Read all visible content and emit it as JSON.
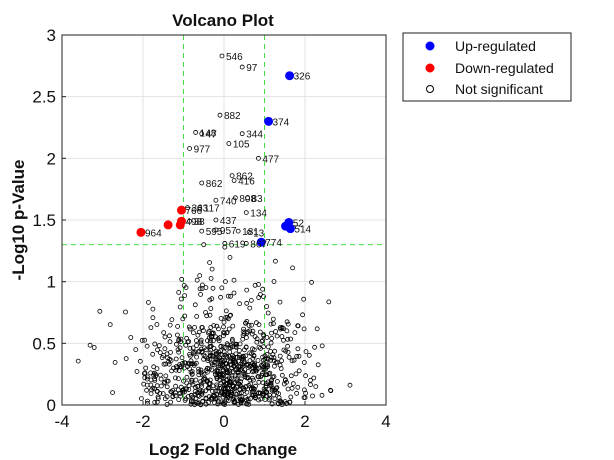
{
  "chart_data": {
    "type": "scatter",
    "title": "Volcano Plot",
    "xlabel": "Log2 Fold Change",
    "ylabel": "-Log10 p-Value",
    "xlim": [
      -4,
      4
    ],
    "ylim": [
      0,
      3
    ],
    "xticks": [
      "-4",
      "-2",
      "0",
      "2",
      "4"
    ],
    "yticks": [
      "0",
      "0.5",
      "1",
      "1.5",
      "2",
      "2.5",
      "3"
    ],
    "grid": true,
    "legend_position": "outside-top-right",
    "thresholds": {
      "log2fc": [
        -1,
        1
      ],
      "neg_log10_p": 1.3
    },
    "colors": {
      "up": "#0000ff",
      "down": "#ff0000",
      "ns": "#000000",
      "threshold": "#44dd44"
    },
    "series": [
      {
        "name": "Up-regulated",
        "points": [
          {
            "x": 1.62,
            "y": 2.67,
            "label": "326"
          },
          {
            "x": 1.1,
            "y": 2.3,
            "label": "374"
          },
          {
            "x": 1.6,
            "y": 1.48,
            "label": "52"
          },
          {
            "x": 1.52,
            "y": 1.45,
            "label": ""
          },
          {
            "x": 1.64,
            "y": 1.43,
            "label": "514"
          },
          {
            "x": 0.92,
            "y": 1.32,
            "label": "774"
          }
        ]
      },
      {
        "name": "Down-regulated",
        "points": [
          {
            "x": -2.05,
            "y": 1.4,
            "label": "964"
          },
          {
            "x": -1.05,
            "y": 1.58,
            "label": "766"
          },
          {
            "x": -1.05,
            "y": 1.49,
            "label": "498"
          },
          {
            "x": -1.08,
            "y": 1.46,
            "label": ""
          },
          {
            "x": -1.38,
            "y": 1.46,
            "label": ""
          }
        ]
      },
      {
        "name": "Not significant",
        "points": [
          {
            "x": -0.05,
            "y": 2.83,
            "label": "546"
          },
          {
            "x": 0.45,
            "y": 2.74,
            "label": "97"
          },
          {
            "x": -0.1,
            "y": 2.35,
            "label": "882"
          },
          {
            "x": -0.7,
            "y": 2.21,
            "label": "148"
          },
          {
            "x": -0.55,
            "y": 2.2,
            "label": "47"
          },
          {
            "x": 0.45,
            "y": 2.2,
            "label": "344"
          },
          {
            "x": 0.12,
            "y": 2.12,
            "label": "105"
          },
          {
            "x": -0.85,
            "y": 2.08,
            "label": "977"
          },
          {
            "x": 0.85,
            "y": 2.0,
            "label": "477"
          },
          {
            "x": 0.2,
            "y": 1.86,
            "label": "862"
          },
          {
            "x": 0.25,
            "y": 1.82,
            "label": "416"
          },
          {
            "x": -0.55,
            "y": 1.8,
            "label": "862"
          },
          {
            "x": 0.28,
            "y": 1.68,
            "label": "808"
          },
          {
            "x": 0.58,
            "y": 1.68,
            "label": "83"
          },
          {
            "x": -0.2,
            "y": 1.66,
            "label": "740"
          },
          {
            "x": -0.9,
            "y": 1.6,
            "label": "363"
          },
          {
            "x": -0.6,
            "y": 1.6,
            "label": "117"
          },
          {
            "x": 0.55,
            "y": 1.56,
            "label": "134"
          },
          {
            "x": -0.2,
            "y": 1.5,
            "label": "437"
          },
          {
            "x": -0.85,
            "y": 1.49,
            "label": "38"
          },
          {
            "x": -0.2,
            "y": 1.42,
            "label": "957"
          },
          {
            "x": 0.35,
            "y": 1.41,
            "label": "181"
          },
          {
            "x": 0.62,
            "y": 1.4,
            "label": "13"
          },
          {
            "x": -0.55,
            "y": 1.41,
            "label": "595"
          },
          {
            "x": 0.02,
            "y": 1.31,
            "label": "619"
          },
          {
            "x": 0.55,
            "y": 1.31,
            "label": "867"
          },
          {
            "x": 0.02,
            "y": 1.28,
            "label": ""
          },
          {
            "x": -0.5,
            "y": 1.3,
            "label": ""
          }
        ]
      }
    ],
    "ns_cloud_note_count": 900
  },
  "legend": {
    "items": [
      {
        "label": "Up-regulated",
        "marker": "filled",
        "color": "#0000ff"
      },
      {
        "label": "Down-regulated",
        "marker": "filled",
        "color": "#ff0000"
      },
      {
        "label": "Not significant",
        "marker": "open",
        "color": "#000000"
      }
    ]
  }
}
